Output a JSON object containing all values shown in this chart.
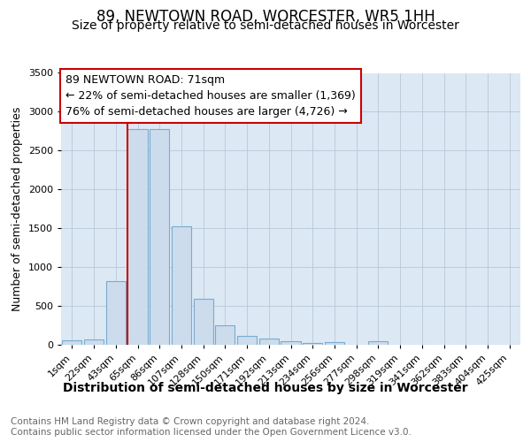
{
  "title": "89, NEWTOWN ROAD, WORCESTER, WR5 1HH",
  "subtitle": "Size of property relative to semi-detached houses in Worcester",
  "xlabel": "Distribution of semi-detached houses by size in Worcester",
  "ylabel": "Number of semi-detached properties",
  "categories": [
    "1sqm",
    "22sqm",
    "43sqm",
    "65sqm",
    "86sqm",
    "107sqm",
    "128sqm",
    "150sqm",
    "171sqm",
    "192sqm",
    "213sqm",
    "234sqm",
    "256sqm",
    "277sqm",
    "298sqm",
    "319sqm",
    "341sqm",
    "362sqm",
    "383sqm",
    "404sqm",
    "425sqm"
  ],
  "values": [
    60,
    70,
    820,
    2780,
    2780,
    1530,
    590,
    255,
    115,
    80,
    45,
    25,
    30,
    0,
    45,
    0,
    0,
    0,
    0,
    0,
    0
  ],
  "bar_color": "#ccdcec",
  "bar_edge_color": "#7aaad0",
  "annotation_text_line1": "89 NEWTOWN ROAD: 71sqm",
  "annotation_text_line2": "← 22% of semi-detached houses are smaller (1,369)",
  "annotation_text_line3": "76% of semi-detached houses are larger (4,726) →",
  "annotation_box_facecolor": "#ffffff",
  "annotation_border_color": "#cc0000",
  "property_line_color": "#cc0000",
  "ylim": [
    0,
    3500
  ],
  "yticks": [
    0,
    500,
    1000,
    1500,
    2000,
    2500,
    3000,
    3500
  ],
  "grid_color": "#b8c8d8",
  "bg_color": "#dce8f4",
  "footer_text": "Contains HM Land Registry data © Crown copyright and database right 2024.\nContains public sector information licensed under the Open Government Licence v3.0.",
  "title_fontsize": 12,
  "subtitle_fontsize": 10,
  "xlabel_fontsize": 10,
  "ylabel_fontsize": 9,
  "tick_fontsize": 8,
  "annotation_fontsize": 9,
  "footer_fontsize": 7.5
}
